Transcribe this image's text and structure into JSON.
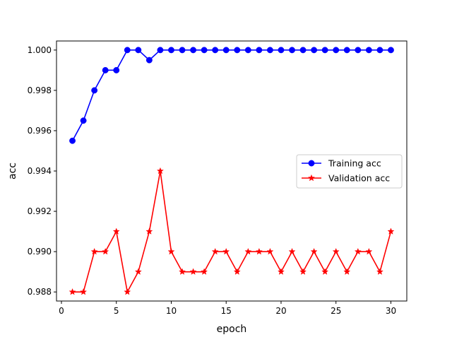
{
  "chart_data": {
    "type": "line",
    "xlabel": "epoch",
    "ylabel": "acc",
    "xlim": [
      -0.45,
      31.45
    ],
    "ylim": [
      0.98755,
      1.00045
    ],
    "x_ticks": [
      0,
      5,
      10,
      15,
      20,
      25,
      30
    ],
    "x_tick_labels": [
      "0",
      "5",
      "10",
      "15",
      "20",
      "25",
      "30"
    ],
    "y_ticks": [
      0.988,
      0.99,
      0.992,
      0.994,
      0.996,
      0.998,
      1.0
    ],
    "y_tick_labels": [
      "0.988",
      "0.990",
      "0.992",
      "0.994",
      "0.996",
      "0.998",
      "1.000"
    ],
    "grid": false,
    "legend_position": "center-right",
    "x": [
      1,
      2,
      3,
      4,
      5,
      6,
      7,
      8,
      9,
      10,
      11,
      12,
      13,
      14,
      15,
      16,
      17,
      18,
      19,
      20,
      21,
      22,
      23,
      24,
      25,
      26,
      27,
      28,
      29,
      30
    ],
    "series": [
      {
        "name": "Training acc",
        "color": "#0000ff",
        "marker": "circle",
        "values": [
          0.9955,
          0.9965,
          0.998,
          0.999,
          0.999,
          1.0,
          1.0,
          0.9995,
          1.0,
          1.0,
          1.0,
          1.0,
          1.0,
          1.0,
          1.0,
          1.0,
          1.0,
          1.0,
          1.0,
          1.0,
          1.0,
          1.0,
          1.0,
          1.0,
          1.0,
          1.0,
          1.0,
          1.0,
          1.0,
          1.0
        ]
      },
      {
        "name": "Validation acc",
        "color": "#ff0000",
        "marker": "star",
        "values": [
          0.988,
          0.988,
          0.99,
          0.99,
          0.991,
          0.988,
          0.989,
          0.991,
          0.994,
          0.99,
          0.989,
          0.989,
          0.989,
          0.99,
          0.99,
          0.989,
          0.99,
          0.99,
          0.99,
          0.989,
          0.99,
          0.989,
          0.99,
          0.989,
          0.99,
          0.989,
          0.99,
          0.99,
          0.989,
          0.991
        ]
      }
    ]
  }
}
